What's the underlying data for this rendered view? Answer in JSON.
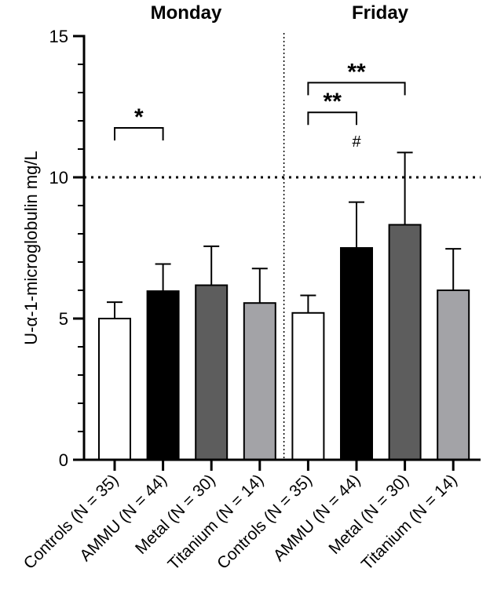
{
  "chart_data": {
    "type": "bar",
    "title": "",
    "groups": [
      "Monday",
      "Friday"
    ],
    "categories": [
      "Controls (N = 35)",
      "AMMU (N = 44)",
      "Metal (N = 30)",
      "Titanium (N = 14)",
      "Controls (N = 35)",
      "AMMU (N = 44)",
      "Metal (N = 30)",
      "Titanium (N = 14)"
    ],
    "values": [
      5.0,
      5.97,
      6.18,
      5.55,
      5.2,
      7.5,
      8.32,
      6.0
    ],
    "errors_upper": [
      5.58,
      6.93,
      7.56,
      6.77,
      5.82,
      9.12,
      10.88,
      7.47
    ],
    "colors": [
      "#ffffff",
      "#000000",
      "#5d5d5d",
      "#a3a3a7",
      "#ffffff",
      "#000000",
      "#5d5d5d",
      "#a3a3a7"
    ],
    "xlabel": "",
    "ylabel": "U-α-1-microglobulin mg/L",
    "ylim": [
      0,
      15
    ],
    "yticks": [
      0,
      5,
      10,
      15
    ],
    "reference_line": 10,
    "significance": [
      {
        "from": 0,
        "to": 1,
        "label": "*",
        "bracket_y": 11.75
      },
      {
        "from": 4,
        "to": 5,
        "label": "**",
        "bracket_y": 12.3
      },
      {
        "from": 4,
        "to": 6,
        "label": "**",
        "bracket_y": 13.35
      }
    ],
    "annotations": [
      {
        "category_index": 5,
        "label": "#",
        "y": 11.3
      }
    ]
  }
}
